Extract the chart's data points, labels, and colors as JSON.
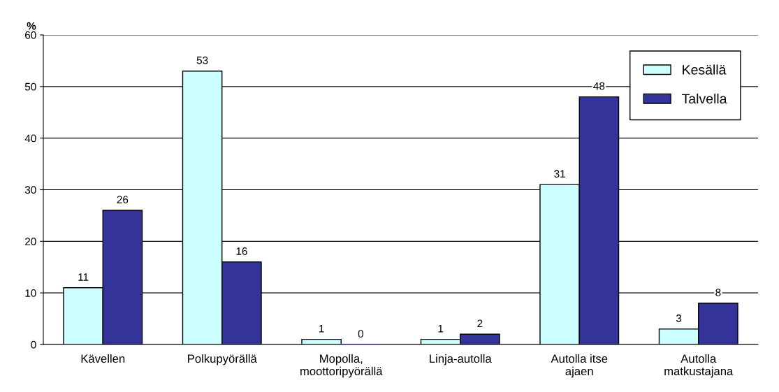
{
  "chart_data": {
    "type": "bar",
    "ylabel": "%",
    "categories": [
      "Kävellen",
      "Polkupyörällä",
      "Mopolla,\nmoottoripyörällä",
      "Linja-autolla",
      "Autolla itse\najaen",
      "Autolla\nmatkustajana"
    ],
    "series": [
      {
        "name": "Kesällä",
        "color": "#ccffff",
        "values": [
          11,
          53,
          1,
          1,
          31,
          3
        ]
      },
      {
        "name": "Talvella",
        "color": "#333399",
        "values": [
          26,
          16,
          0,
          2,
          48,
          8
        ]
      }
    ],
    "ylim": [
      0,
      60
    ],
    "yticks": [
      0,
      10,
      20,
      30,
      40,
      50,
      60
    ],
    "grid": "y",
    "legend": "top right",
    "data_labels": true
  }
}
